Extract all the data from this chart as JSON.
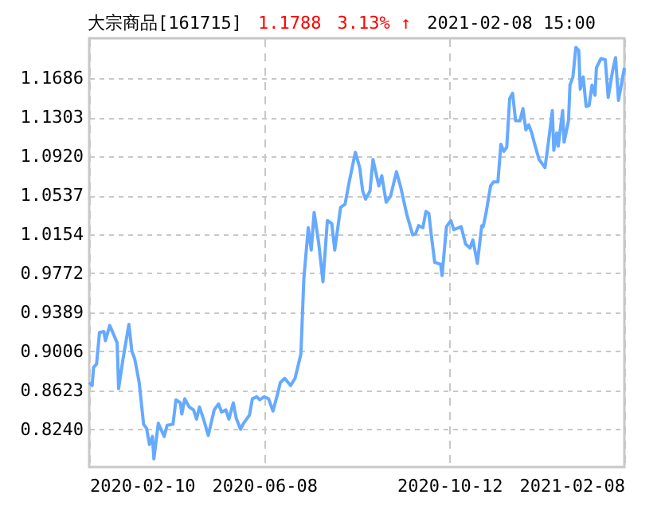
{
  "chart_data": {
    "type": "line",
    "title": "大宗商品[161715]",
    "annotations": [
      "1.1788",
      "3.13% ↑",
      "2021-02-08 15:00"
    ],
    "color": "#66aaff",
    "x": [
      "2020-02-10",
      "2020-02-12",
      "2020-02-13",
      "2020-02-15",
      "2020-02-17",
      "2020-02-20",
      "2020-02-21",
      "2020-02-24",
      "2020-02-29",
      "2020-03-01",
      "2020-03-04",
      "2020-03-08",
      "2020-03-10",
      "2020-03-12",
      "2020-03-15",
      "2020-03-18",
      "2020-03-20",
      "2020-03-22",
      "2020-03-24",
      "2020-03-25",
      "2020-03-28",
      "2020-04-01",
      "2020-04-03",
      "2020-04-07",
      "2020-04-09",
      "2020-04-12",
      "2020-04-13",
      "2020-04-15",
      "2020-04-18",
      "2020-04-21",
      "2020-04-23",
      "2020-04-25",
      "2020-04-28",
      "2020-05-01",
      "2020-05-05",
      "2020-05-08",
      "2020-05-10",
      "2020-05-13",
      "2020-05-15",
      "2020-05-18",
      "2020-05-20",
      "2020-05-23",
      "2020-05-25",
      "2020-05-29",
      "2020-05-31",
      "2020-06-03",
      "2020-06-05",
      "2020-06-08",
      "2020-06-11",
      "2020-06-14",
      "2020-06-17",
      "2020-06-19",
      "2020-06-22",
      "2020-06-26",
      "2020-06-29",
      "2020-07-03",
      "2020-07-05",
      "2020-07-08",
      "2020-07-10",
      "2020-07-12",
      "2020-07-15",
      "2020-07-18",
      "2020-07-21",
      "2020-07-24",
      "2020-07-26",
      "2020-07-30",
      "2020-08-02",
      "2020-08-05",
      "2020-08-09",
      "2020-08-12",
      "2020-08-14",
      "2020-08-16",
      "2020-08-19",
      "2020-08-21",
      "2020-08-25",
      "2020-08-27",
      "2020-08-30",
      "2020-09-02",
      "2020-09-06",
      "2020-09-09",
      "2020-09-13",
      "2020-09-17",
      "2020-09-19",
      "2020-09-21",
      "2020-09-24",
      "2020-09-26",
      "2020-09-28",
      "2020-09-30",
      "2020-10-02",
      "2020-10-06",
      "2020-10-07",
      "2020-10-10",
      "2020-10-13",
      "2020-10-15",
      "2020-10-20",
      "2020-10-23",
      "2020-10-26",
      "2020-10-28",
      "2020-10-31",
      "2020-11-03",
      "2020-11-04",
      "2020-11-06",
      "2020-11-09",
      "2020-11-11",
      "2020-11-14",
      "2020-11-16",
      "2020-11-18",
      "2020-11-20",
      "2020-11-22",
      "2020-11-24",
      "2020-11-26",
      "2020-11-29",
      "2020-12-01",
      "2020-12-03",
      "2020-12-05",
      "2020-12-07",
      "2020-12-09",
      "2020-12-12",
      "2020-12-16",
      "2020-12-18",
      "2020-12-21",
      "2020-12-22",
      "2020-12-24",
      "2020-12-25",
      "2020-12-28",
      "2020-12-29",
      "2021-01-01",
      "2021-01-02",
      "2021-01-04",
      "2021-01-06",
      "2021-01-08",
      "2021-01-09",
      "2021-01-11",
      "2021-01-13",
      "2021-01-15",
      "2021-01-17",
      "2021-01-19",
      "2021-01-20",
      "2021-01-23",
      "2021-01-26",
      "2021-01-28",
      "2021-01-31",
      "2021-02-02",
      "2021-02-04",
      "2021-02-08"
    ],
    "values": [
      0.87,
      0.867,
      0.885,
      0.888,
      0.919,
      0.92,
      0.911,
      0.926,
      0.909,
      0.864,
      0.893,
      0.927,
      0.901,
      0.893,
      0.87,
      0.829,
      0.825,
      0.809,
      0.817,
      0.795,
      0.83,
      0.817,
      0.828,
      0.829,
      0.853,
      0.85,
      0.839,
      0.854,
      0.846,
      0.843,
      0.834,
      0.846,
      0.833,
      0.818,
      0.843,
      0.849,
      0.841,
      0.843,
      0.834,
      0.85,
      0.835,
      0.824,
      0.83,
      0.838,
      0.854,
      0.856,
      0.853,
      0.856,
      0.854,
      0.842,
      0.858,
      0.87,
      0.874,
      0.867,
      0.874,
      0.898,
      0.972,
      1.022,
      1.0,
      1.037,
      1.008,
      0.969,
      1.029,
      1.026,
      1.0,
      1.042,
      1.045,
      1.068,
      1.096,
      1.081,
      1.058,
      1.05,
      1.058,
      1.089,
      1.063,
      1.073,
      1.047,
      1.053,
      1.077,
      1.061,
      1.035,
      1.015,
      1.016,
      1.024,
      1.022,
      1.038,
      1.036,
      1.011,
      0.988,
      0.986,
      0.975,
      1.023,
      1.029,
      1.02,
      1.023,
      1.006,
      1.002,
      1.01,
      0.987,
      1.024,
      1.023,
      1.037,
      1.063,
      1.067,
      1.067,
      1.104,
      1.097,
      1.101,
      1.149,
      1.154,
      1.127,
      1.127,
      1.139,
      1.118,
      1.123,
      1.115,
      1.104,
      1.089,
      1.081,
      1.102,
      1.137,
      1.098,
      1.115,
      1.102,
      1.137,
      1.106,
      1.127,
      1.162,
      1.17,
      1.199,
      1.196,
      1.158,
      1.17,
      1.141,
      1.142,
      1.162,
      1.152,
      1.179,
      1.188,
      1.187,
      1.15,
      1.176,
      1.189,
      1.147,
      1.179
    ],
    "xlim": [
      "2020-02-10",
      "2021-02-08"
    ],
    "xticks": [
      "2020-02-10",
      "2020-06-08",
      "2020-10-12",
      "2021-02-08"
    ],
    "ylim": [
      0.787,
      1.208
    ],
    "yticks": [
      {
        "value": 0.824,
        "label": "0.8240"
      },
      0.8623,
      0.9006,
      0.9389,
      0.9772,
      1.0154,
      1.0537,
      {
        "value": 1.092,
        "label": "1.0920"
      },
      1.1303,
      1.1686
    ],
    "grid": true
  }
}
